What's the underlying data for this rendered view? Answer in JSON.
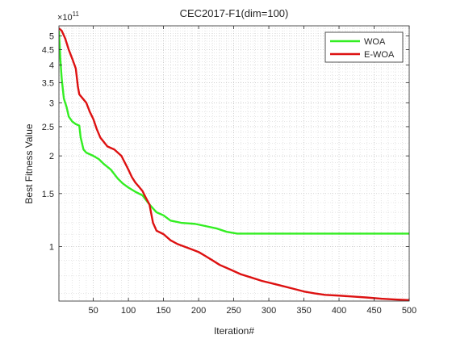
{
  "chart_data": {
    "type": "line",
    "title": "CEC2017-F1(dim=100)",
    "xlabel": "Iteration#",
    "ylabel": "Best Fitness Value",
    "exponent_label": "×10",
    "exponent_power": "11",
    "x_scale": "linear",
    "y_scale": "log",
    "xlim": [
      1,
      500
    ],
    "ylim": [
      66000000000.0,
      540000000000.0
    ],
    "xticks": [
      50,
      100,
      150,
      200,
      250,
      300,
      350,
      400,
      450,
      500
    ],
    "yticks": [
      1,
      1.5,
      2,
      2.5,
      3,
      3.5,
      4,
      4.5,
      5
    ],
    "y_tick_multiplier": 100000000000.0,
    "grid": true,
    "minor_grid": true,
    "legend": {
      "position": "top-right"
    },
    "series": [
      {
        "name": "WOA",
        "color": "#33ee22",
        "points": [
          [
            1,
            520000000000.0
          ],
          [
            3,
            420000000000.0
          ],
          [
            5,
            360000000000.0
          ],
          [
            8,
            310000000000.0
          ],
          [
            12,
            290000000000.0
          ],
          [
            15,
            270000000000.0
          ],
          [
            20,
            260000000000.0
          ],
          [
            25,
            255000000000.0
          ],
          [
            30,
            252000000000.0
          ],
          [
            32,
            230000000000.0
          ],
          [
            36,
            210000000000.0
          ],
          [
            40,
            205000000000.0
          ],
          [
            50,
            200000000000.0
          ],
          [
            58,
            195000000000.0
          ],
          [
            65,
            188000000000.0
          ],
          [
            75,
            180000000000.0
          ],
          [
            85,
            168000000000.0
          ],
          [
            92,
            162000000000.0
          ],
          [
            100,
            157000000000.0
          ],
          [
            110,
            152000000000.0
          ],
          [
            120,
            148000000000.0
          ],
          [
            130,
            138000000000.0
          ],
          [
            140,
            130000000000.0
          ],
          [
            150,
            127000000000.0
          ],
          [
            160,
            122000000000.0
          ],
          [
            175,
            120000000000.0
          ],
          [
            195,
            119000000000.0
          ],
          [
            210,
            117000000000.0
          ],
          [
            225,
            115000000000.0
          ],
          [
            240,
            112000000000.0
          ],
          [
            255,
            110500000000.0
          ],
          [
            300,
            110500000000.0
          ],
          [
            400,
            110500000000.0
          ],
          [
            500,
            110500000000.0
          ]
        ]
      },
      {
        "name": "E-WOA",
        "color": "#dd1111",
        "points": [
          [
            1,
            530000000000.0
          ],
          [
            5,
            520000000000.0
          ],
          [
            10,
            490000000000.0
          ],
          [
            15,
            450000000000.0
          ],
          [
            20,
            420000000000.0
          ],
          [
            25,
            390000000000.0
          ],
          [
            28,
            340000000000.0
          ],
          [
            30,
            320000000000.0
          ],
          [
            35,
            310000000000.0
          ],
          [
            40,
            300000000000.0
          ],
          [
            45,
            280000000000.0
          ],
          [
            50,
            265000000000.0
          ],
          [
            55,
            245000000000.0
          ],
          [
            60,
            230000000000.0
          ],
          [
            70,
            215000000000.0
          ],
          [
            80,
            210000000000.0
          ],
          [
            90,
            200000000000.0
          ],
          [
            100,
            180000000000.0
          ],
          [
            105,
            170000000000.0
          ],
          [
            110,
            163000000000.0
          ],
          [
            115,
            158000000000.0
          ],
          [
            120,
            153000000000.0
          ],
          [
            125,
            145000000000.0
          ],
          [
            130,
            138000000000.0
          ],
          [
            135,
            120000000000.0
          ],
          [
            140,
            113000000000.0
          ],
          [
            150,
            110000000000.0
          ],
          [
            160,
            105000000000.0
          ],
          [
            170,
            102000000000.0
          ],
          [
            180,
            100000000000.0
          ],
          [
            190,
            98000000000.0
          ],
          [
            200,
            96000000000.0
          ],
          [
            210,
            93000000000.0
          ],
          [
            220,
            90000000000.0
          ],
          [
            230,
            87000000000.0
          ],
          [
            245,
            84000000000.0
          ],
          [
            260,
            81000000000.0
          ],
          [
            275,
            79000000000.0
          ],
          [
            290,
            77000000000.0
          ],
          [
            305,
            75500000000.0
          ],
          [
            320,
            74000000000.0
          ],
          [
            335,
            72500000000.0
          ],
          [
            350,
            71000000000.0
          ],
          [
            365,
            70000000000.0
          ],
          [
            380,
            69200000000.0
          ],
          [
            400,
            68800000000.0
          ],
          [
            420,
            68300000000.0
          ],
          [
            440,
            67800000000.0
          ],
          [
            460,
            67200000000.0
          ],
          [
            480,
            66800000000.0
          ],
          [
            500,
            66500000000.0
          ]
        ]
      }
    ]
  }
}
